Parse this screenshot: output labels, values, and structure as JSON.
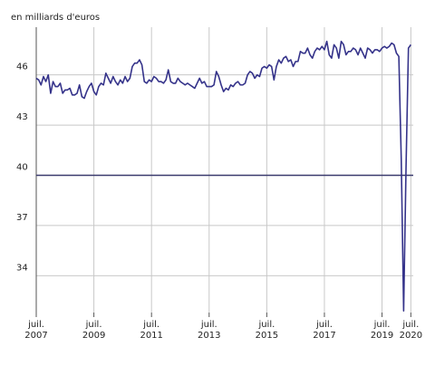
{
  "chart_data": {
    "type": "line",
    "y_axis_label": "en milliards d'euros",
    "x": [
      "2007-07",
      "2007-08",
      "2007-09",
      "2007-10",
      "2007-11",
      "2007-12",
      "2008-01",
      "2008-02",
      "2008-03",
      "2008-04",
      "2008-05",
      "2008-06",
      "2008-07",
      "2008-08",
      "2008-09",
      "2008-10",
      "2008-11",
      "2008-12",
      "2009-01",
      "2009-02",
      "2009-03",
      "2009-04",
      "2009-05",
      "2009-06",
      "2009-07",
      "2009-08",
      "2009-09",
      "2009-10",
      "2009-11",
      "2009-12",
      "2010-01",
      "2010-02",
      "2010-03",
      "2010-04",
      "2010-05",
      "2010-06",
      "2010-07",
      "2010-08",
      "2010-09",
      "2010-10",
      "2010-11",
      "2010-12",
      "2011-01",
      "2011-02",
      "2011-03",
      "2011-04",
      "2011-05",
      "2011-06",
      "2011-07",
      "2011-08",
      "2011-09",
      "2011-10",
      "2011-11",
      "2011-12",
      "2012-01",
      "2012-02",
      "2012-03",
      "2012-04",
      "2012-05",
      "2012-06",
      "2012-07",
      "2012-08",
      "2012-09",
      "2012-10",
      "2012-11",
      "2012-12",
      "2013-01",
      "2013-02",
      "2013-03",
      "2013-04",
      "2013-05",
      "2013-06",
      "2013-07",
      "2013-08",
      "2013-09",
      "2013-10",
      "2013-11",
      "2013-12",
      "2014-01",
      "2014-02",
      "2014-03",
      "2014-04",
      "2014-05",
      "2014-06",
      "2014-07",
      "2014-08",
      "2014-09",
      "2014-10",
      "2014-11",
      "2014-12",
      "2015-01",
      "2015-02",
      "2015-03",
      "2015-04",
      "2015-05",
      "2015-06",
      "2015-07",
      "2015-08",
      "2015-09",
      "2015-10",
      "2015-11",
      "2015-12",
      "2016-01",
      "2016-02",
      "2016-03",
      "2016-04",
      "2016-05",
      "2016-06",
      "2016-07",
      "2016-08",
      "2016-09",
      "2016-10",
      "2016-11",
      "2016-12",
      "2017-01",
      "2017-02",
      "2017-03",
      "2017-04",
      "2017-05",
      "2017-06",
      "2017-07",
      "2017-08",
      "2017-09",
      "2017-10",
      "2017-11",
      "2017-12",
      "2018-01",
      "2018-02",
      "2018-03",
      "2018-04",
      "2018-05",
      "2018-06",
      "2018-07",
      "2018-08",
      "2018-09",
      "2018-10",
      "2018-11",
      "2018-12",
      "2019-01",
      "2019-02",
      "2019-03",
      "2019-04",
      "2019-05",
      "2019-06",
      "2019-07",
      "2019-08",
      "2019-09",
      "2019-10",
      "2019-11",
      "2019-12",
      "2020-01",
      "2020-02",
      "2020-03",
      "2020-04",
      "2020-05",
      "2020-06",
      "2020-07"
    ],
    "series": [
      {
        "color": "#35338a",
        "values": [
          45.8,
          45.7,
          45.4,
          45.9,
          45.6,
          46.0,
          44.9,
          45.6,
          45.3,
          45.3,
          45.5,
          44.9,
          45.1,
          45.1,
          45.2,
          44.8,
          44.8,
          44.9,
          45.4,
          44.7,
          44.6,
          45.0,
          45.3,
          45.5,
          45.0,
          44.8,
          45.3,
          45.5,
          45.4,
          46.1,
          45.8,
          45.5,
          45.9,
          45.6,
          45.4,
          45.7,
          45.5,
          45.9,
          45.6,
          45.8,
          46.5,
          46.7,
          46.7,
          46.9,
          46.6,
          45.6,
          45.5,
          45.7,
          45.6,
          45.9,
          45.8,
          45.6,
          45.6,
          45.5,
          45.7,
          46.3,
          45.6,
          45.5,
          45.5,
          45.8,
          45.6,
          45.5,
          45.4,
          45.5,
          45.4,
          45.3,
          45.2,
          45.5,
          45.8,
          45.5,
          45.6,
          45.3,
          45.3,
          45.3,
          45.4,
          46.2,
          45.9,
          45.4,
          45.0,
          45.2,
          45.1,
          45.4,
          45.3,
          45.5,
          45.6,
          45.4,
          45.4,
          45.5,
          46.0,
          46.2,
          46.1,
          45.8,
          46.0,
          45.9,
          46.4,
          46.5,
          46.4,
          46.6,
          46.5,
          45.7,
          46.5,
          46.9,
          46.7,
          47.0,
          47.1,
          46.8,
          46.9,
          46.5,
          46.8,
          46.8,
          47.4,
          47.3,
          47.3,
          47.6,
          47.2,
          47.0,
          47.4,
          47.6,
          47.5,
          47.7,
          47.5,
          48.0,
          47.2,
          47.0,
          47.8,
          47.6,
          47.0,
          48.0,
          47.8,
          47.2,
          47.4,
          47.4,
          47.6,
          47.5,
          47.2,
          47.6,
          47.3,
          47.0,
          47.6,
          47.5,
          47.3,
          47.5,
          47.5,
          47.4,
          47.6,
          47.7,
          47.6,
          47.7,
          47.9,
          47.8,
          47.3,
          47.1,
          41.0,
          31.9,
          40.5,
          47.6,
          47.8
        ]
      }
    ],
    "xlim": [
      "2007-07",
      "2020-08"
    ],
    "xticks": [
      {
        "value": "2007-07",
        "label": "juil. 2007"
      },
      {
        "value": "2009-07",
        "label": "juil. 2009"
      },
      {
        "value": "2011-07",
        "label": "juil. 2011"
      },
      {
        "value": "2013-07",
        "label": "juil. 2013"
      },
      {
        "value": "2015-07",
        "label": "juil. 2015"
      },
      {
        "value": "2017-07",
        "label": "juil. 2017"
      },
      {
        "value": "2019-07",
        "label": "juil. 2019"
      },
      {
        "value": "2020-07",
        "label": "juil. 2020"
      }
    ],
    "ylim": [
      31.8,
      48.85
    ],
    "yticks": [
      34,
      37,
      40,
      43,
      46
    ],
    "reference_line": 40,
    "grid": true
  }
}
